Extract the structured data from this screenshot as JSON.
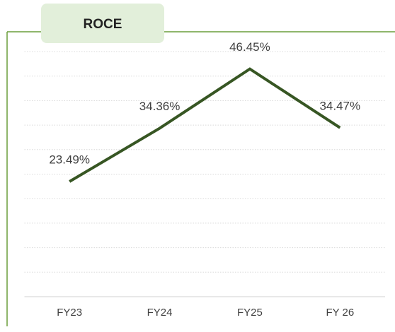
{
  "chart_data": {
    "type": "line",
    "title": "ROCE",
    "categories": [
      "FY23",
      "FY24",
      "FY25",
      "FY 26"
    ],
    "values": [
      23.49,
      34.36,
      46.45,
      34.47
    ],
    "value_labels": [
      "23.49%",
      "34.36%",
      "46.45%",
      "34.47%"
    ],
    "color": "#375623",
    "ylim": [
      0,
      50
    ],
    "yticks": [
      0,
      5,
      10,
      15,
      20,
      25,
      30,
      35,
      40,
      45,
      50
    ],
    "grid": true
  }
}
